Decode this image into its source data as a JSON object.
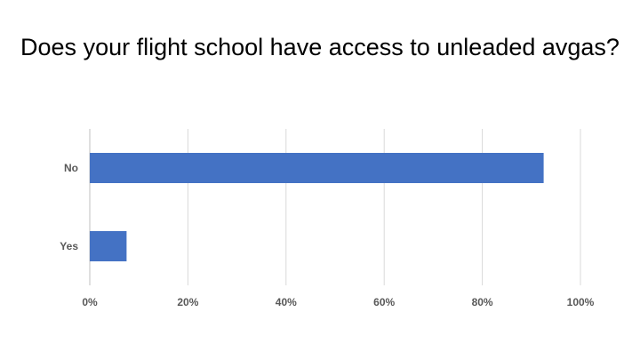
{
  "chart_data": {
    "type": "bar",
    "orientation": "horizontal",
    "title": "Does your flight school have access to unleaded avgas?",
    "categories": [
      "No",
      "Yes"
    ],
    "values": [
      92.5,
      7.5
    ],
    "xlim": [
      0,
      100
    ],
    "xticks": [
      "0%",
      "20%",
      "40%",
      "60%",
      "80%",
      "100%"
    ],
    "grid": true,
    "legend": "none",
    "bar_color": "#4472C4",
    "grid_color": "#D9D9D9",
    "axis_color": "#BFBFBF"
  }
}
